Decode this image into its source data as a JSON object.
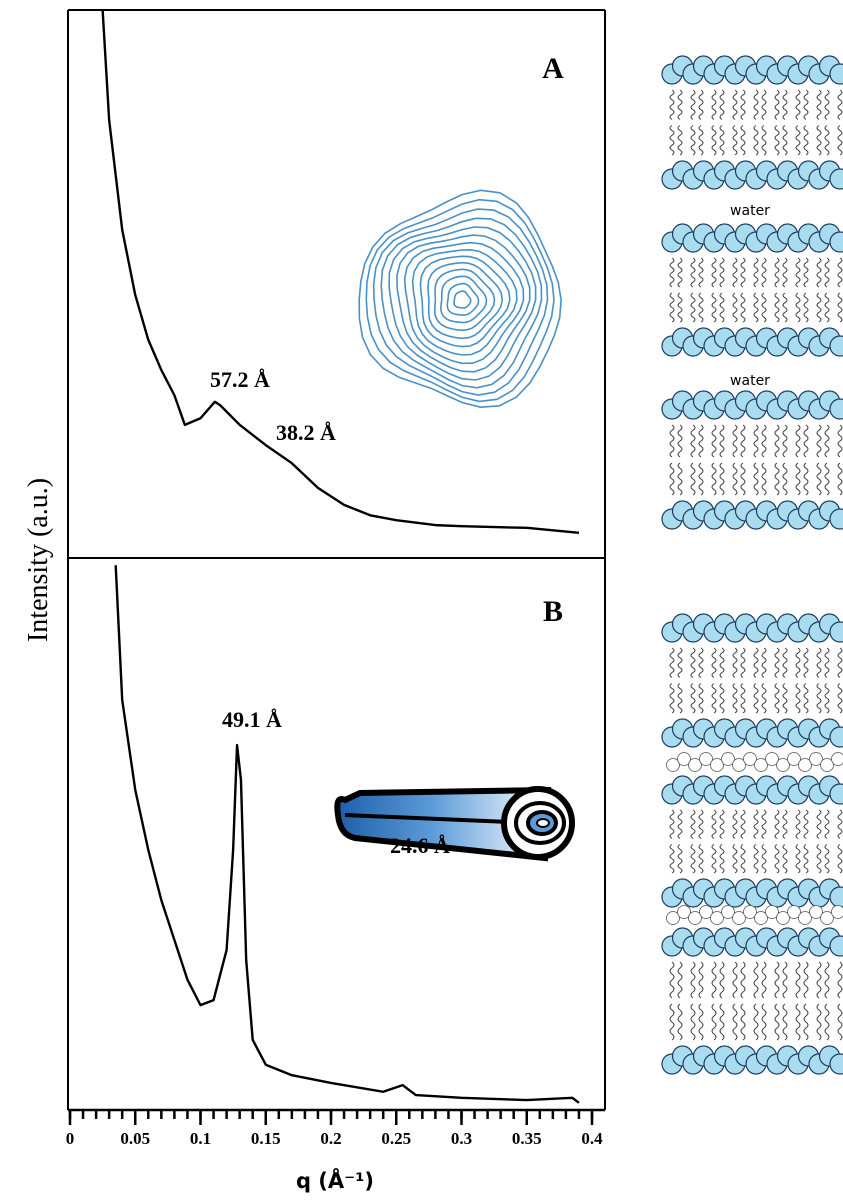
{
  "chart_data": [
    {
      "type": "line",
      "panel": "A",
      "ylabel": "Intensity (a.u.)",
      "xlim": [
        0,
        0.4
      ],
      "ylim": [
        0,
        100
      ],
      "x": [
        0.025,
        0.03,
        0.04,
        0.05,
        0.06,
        0.07,
        0.08,
        0.088,
        0.1,
        0.111,
        0.115,
        0.13,
        0.15,
        0.17,
        0.19,
        0.21,
        0.23,
        0.25,
        0.28,
        0.3,
        0.35,
        0.39
      ],
      "series": [
        {
          "color": "#000000",
          "values": [
            100,
            79.9,
            59.9,
            48.0,
            39.8,
            34.3,
            29.7,
            24.3,
            25.5,
            28.5,
            27.9,
            24.3,
            20.6,
            17.3,
            12.8,
            9.7,
            7.8,
            6.9,
            6.0,
            5.8,
            5.5,
            4.6
          ]
        }
      ],
      "annotations": [
        "57.2 Å",
        "38.2 Å"
      ]
    },
    {
      "type": "line",
      "panel": "B",
      "xlabel": "q (Å⁻¹)",
      "xlim": [
        0,
        0.4
      ],
      "ylim": [
        0,
        100
      ],
      "xticks": [
        0,
        0.05,
        0.1,
        0.15,
        0.2,
        0.25,
        0.3,
        0.35,
        0.4
      ],
      "x": [
        0.035,
        0.04,
        0.05,
        0.06,
        0.07,
        0.08,
        0.09,
        0.1,
        0.11,
        0.12,
        0.125,
        0.128,
        0.131,
        0.135,
        0.14,
        0.15,
        0.17,
        0.2,
        0.24,
        0.255,
        0.265,
        0.3,
        0.35,
        0.385,
        0.39
      ],
      "series": [
        {
          "color": "#000000",
          "values": [
            98.7,
            74.3,
            58.0,
            47.1,
            38.0,
            30.8,
            23.6,
            19.0,
            19.9,
            29.0,
            47.1,
            66.1,
            59.8,
            27.2,
            12.7,
            8.2,
            6.3,
            4.9,
            3.3,
            4.5,
            2.7,
            2.2,
            1.8,
            2.2,
            1.3
          ]
        }
      ],
      "annotations": [
        "49.1 Å",
        "24.6 Å"
      ]
    }
  ],
  "illustration": {
    "water_labels": [
      "water",
      "water"
    ]
  }
}
